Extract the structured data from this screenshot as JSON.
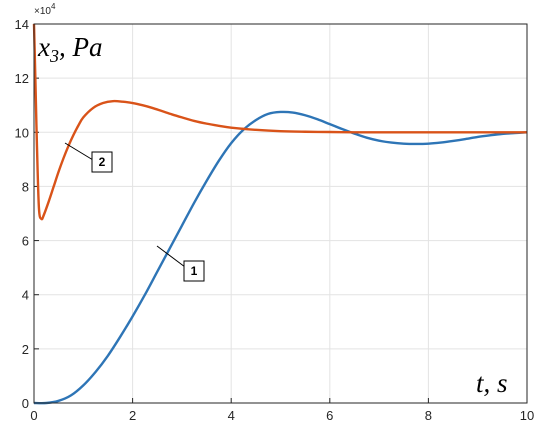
{
  "chart_data": {
    "type": "line",
    "ylabel": "x3, Pa",
    "ylabel_main": "x",
    "ylabel_sub": "3",
    "ylabel_rest": ", Pa",
    "xlabel": "t, s",
    "exponent": "×10",
    "exponent_power": "4",
    "xlim": [
      0,
      10
    ],
    "ylim": [
      0,
      140000
    ],
    "grid": true,
    "x_ticks": [
      "0",
      "2",
      "4",
      "6",
      "8",
      "10"
    ],
    "y_ticks": [
      "0",
      "2",
      "4",
      "6",
      "8",
      "10",
      "12",
      "14"
    ],
    "series": [
      {
        "label": "1",
        "color": "#2e75b6",
        "x": [
          0,
          0.25,
          0.5,
          0.75,
          1.0,
          1.25,
          1.5,
          1.75,
          2.0,
          2.25,
          2.5,
          2.75,
          3.0,
          3.25,
          3.5,
          3.75,
          4.0,
          4.25,
          4.5,
          4.75,
          5.0,
          5.25,
          5.5,
          5.75,
          6.0,
          6.25,
          6.5,
          6.75,
          7.0,
          7.25,
          7.5,
          7.75,
          8.0,
          8.25,
          8.5,
          8.75,
          9.0,
          9.25,
          9.5,
          9.75,
          10.0
        ],
        "y": [
          0,
          0,
          800,
          2800,
          6500,
          11500,
          17500,
          24500,
          32000,
          40000,
          48500,
          57000,
          65500,
          74000,
          82000,
          89500,
          96000,
          101000,
          104500,
          106800,
          107500,
          107300,
          106300,
          104800,
          103000,
          101200,
          99500,
          98000,
          96900,
          96200,
          95800,
          95700,
          95800,
          96200,
          96800,
          97500,
          98300,
          98900,
          99400,
          99700,
          100000
        ]
      },
      {
        "label": "2",
        "color": "#d95319",
        "x": [
          0,
          0.03,
          0.06,
          0.1,
          0.15,
          0.2,
          0.3,
          0.4,
          0.5,
          0.6,
          0.7,
          0.8,
          0.9,
          1.0,
          1.2,
          1.4,
          1.6,
          1.8,
          2.0,
          2.2,
          2.4,
          2.6,
          2.8,
          3.0,
          3.25,
          3.5,
          3.75,
          4.0,
          4.5,
          5.0,
          5.5,
          6.0,
          6.5,
          7.0,
          8.0,
          9.0,
          10.0
        ],
        "y": [
          140000,
          118000,
          95000,
          72000,
          68000,
          69500,
          74500,
          80000,
          85500,
          90500,
          95000,
          99000,
          102500,
          105500,
          109000,
          110800,
          111500,
          111300,
          110800,
          110000,
          109000,
          107800,
          106600,
          105500,
          104200,
          103200,
          102400,
          101700,
          100900,
          100400,
          100200,
          100100,
          100000,
          100000,
          100000,
          100000,
          100000
        ]
      }
    ]
  }
}
